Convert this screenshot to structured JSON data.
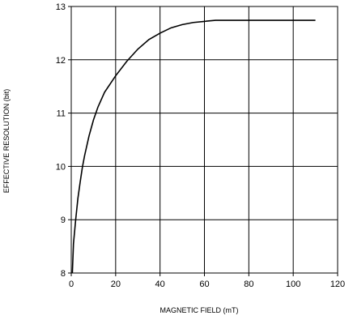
{
  "chart_data": {
    "type": "line",
    "title": "",
    "xlabel": "MAGNETIC FIELD (mT)",
    "ylabel": "EFFECTIVE RESOLUTION (bit)",
    "xlim": [
      0,
      120
    ],
    "ylim": [
      8,
      13
    ],
    "x_ticks": [
      0,
      20,
      40,
      60,
      80,
      100,
      120
    ],
    "y_ticks": [
      8,
      9,
      10,
      11,
      12,
      13
    ],
    "grid": true,
    "legend": "none",
    "series": [
      {
        "x": [
          0.5,
          1,
          2,
          3,
          4,
          5,
          6,
          8,
          10,
          12,
          15,
          20,
          25,
          30,
          35,
          40,
          45,
          50,
          55,
          60,
          62,
          65,
          70,
          80,
          90,
          100,
          110
        ],
        "y": [
          8.0,
          8.55,
          9.0,
          9.4,
          9.7,
          9.98,
          10.2,
          10.57,
          10.87,
          11.11,
          11.39,
          11.7,
          11.97,
          12.2,
          12.38,
          12.5,
          12.6,
          12.66,
          12.7,
          12.72,
          12.73,
          12.74,
          12.74,
          12.74,
          12.74,
          12.74,
          12.74
        ],
        "color": "#000000"
      }
    ]
  }
}
